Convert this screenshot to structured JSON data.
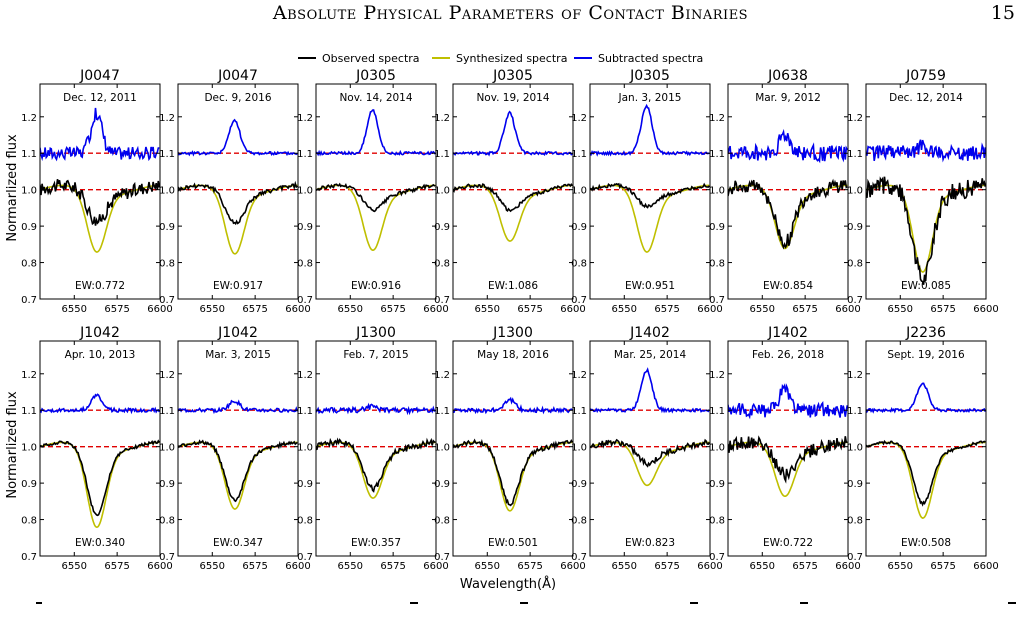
{
  "header": {
    "running_title": "Absolute Physical Parameters of Contact Binaries",
    "page_number": "15"
  },
  "figure": {
    "legend": [
      {
        "label": "Observed spectra",
        "color": "#000000"
      },
      {
        "label": "Synthesized spectra",
        "color": "#bfbf00"
      },
      {
        "label": "Subtracted spectra",
        "color": "#0000ee"
      }
    ],
    "xlabel": "Wavelength(Å)",
    "ylabel": "Normarlized flux",
    "xticks": [
      "6550",
      "6575",
      "6600"
    ],
    "yticks": [
      "0.7",
      "0.8",
      "0.9",
      "1.0",
      "1.1",
      "1.2"
    ]
  },
  "chart_data": {
    "type": "line",
    "xlim": [
      6530,
      6600
    ],
    "ylim": [
      0.7,
      1.29
    ],
    "reference_lines": [
      1.0,
      1.1
    ],
    "reference_line_color": "#e00000",
    "panels": [
      {
        "name": "J0047",
        "date": "Dec. 12, 2011",
        "ew": "EW:0.772",
        "row": 0,
        "col": 0,
        "obs_depth": 0.08,
        "syn_depth": 0.165,
        "sub_peak": 0.11,
        "obs_noise": 0.018,
        "sub_noise": 0.018
      },
      {
        "name": "J0047",
        "date": "Dec. 9, 2016",
        "ew": "EW:0.917",
        "row": 0,
        "col": 1,
        "obs_depth": 0.085,
        "syn_depth": 0.17,
        "sub_peak": 0.09,
        "obs_noise": 0.006,
        "sub_noise": 0.004
      },
      {
        "name": "J0305",
        "date": "Nov. 14, 2014",
        "ew": "EW:0.916",
        "row": 0,
        "col": 2,
        "obs_depth": 0.05,
        "syn_depth": 0.16,
        "sub_peak": 0.12,
        "obs_noise": 0.005,
        "sub_noise": 0.004
      },
      {
        "name": "J0305",
        "date": "Nov. 19, 2014",
        "ew": "EW:1.086",
        "row": 0,
        "col": 3,
        "obs_depth": 0.05,
        "syn_depth": 0.135,
        "sub_peak": 0.11,
        "obs_noise": 0.005,
        "sub_noise": 0.004
      },
      {
        "name": "J0305",
        "date": "Jan. 3, 2015",
        "ew": "EW:0.951",
        "row": 0,
        "col": 4,
        "obs_depth": 0.04,
        "syn_depth": 0.165,
        "sub_peak": 0.13,
        "obs_noise": 0.005,
        "sub_noise": 0.004
      },
      {
        "name": "J0638",
        "date": "Mar. 9, 2012",
        "ew": "EW:0.854",
        "row": 0,
        "col": 5,
        "obs_depth": 0.14,
        "syn_depth": 0.155,
        "sub_peak": 0.05,
        "obs_noise": 0.02,
        "sub_noise": 0.022
      },
      {
        "name": "J0759",
        "date": "Dec. 12, 2014",
        "ew": "EW:0.085",
        "row": 0,
        "col": 6,
        "obs_depth": 0.24,
        "syn_depth": 0.22,
        "sub_peak": 0.02,
        "obs_noise": 0.025,
        "sub_noise": 0.022
      },
      {
        "name": "J1042",
        "date": "Apr. 10, 2013",
        "ew": "EW:0.340",
        "row": 1,
        "col": 0,
        "obs_depth": 0.18,
        "syn_depth": 0.215,
        "sub_peak": 0.04,
        "obs_noise": 0.004,
        "sub_noise": 0.005
      },
      {
        "name": "J1042",
        "date": "Mar. 3, 2015",
        "ew": "EW:0.347",
        "row": 1,
        "col": 1,
        "obs_depth": 0.14,
        "syn_depth": 0.165,
        "sub_peak": 0.025,
        "obs_noise": 0.005,
        "sub_noise": 0.005
      },
      {
        "name": "J1300",
        "date": "Feb. 7, 2015",
        "ew": "EW:0.357",
        "row": 1,
        "col": 2,
        "obs_depth": 0.11,
        "syn_depth": 0.135,
        "sub_peak": 0.01,
        "obs_noise": 0.008,
        "sub_noise": 0.007
      },
      {
        "name": "J1300",
        "date": "May 18, 2016",
        "ew": "EW:0.501",
        "row": 1,
        "col": 3,
        "obs_depth": 0.15,
        "syn_depth": 0.17,
        "sub_peak": 0.03,
        "obs_noise": 0.006,
        "sub_noise": 0.006
      },
      {
        "name": "J1402",
        "date": "Mar. 25, 2014",
        "ew": "EW:0.823",
        "row": 1,
        "col": 4,
        "obs_depth": 0.04,
        "syn_depth": 0.1,
        "sub_peak": 0.11,
        "obs_noise": 0.008,
        "sub_noise": 0.004
      },
      {
        "name": "J1402",
        "date": "Feb. 26, 2018",
        "ew": "EW:0.722",
        "row": 1,
        "col": 5,
        "obs_depth": 0.07,
        "syn_depth": 0.13,
        "sub_peak": 0.06,
        "obs_noise": 0.018,
        "sub_noise": 0.02
      },
      {
        "name": "J2236",
        "date": "Sept. 19, 2016",
        "ew": "EW:0.508",
        "row": 1,
        "col": 6,
        "obs_depth": 0.15,
        "syn_depth": 0.19,
        "sub_peak": 0.075,
        "obs_noise": 0.004,
        "sub_noise": 0.004
      }
    ]
  }
}
